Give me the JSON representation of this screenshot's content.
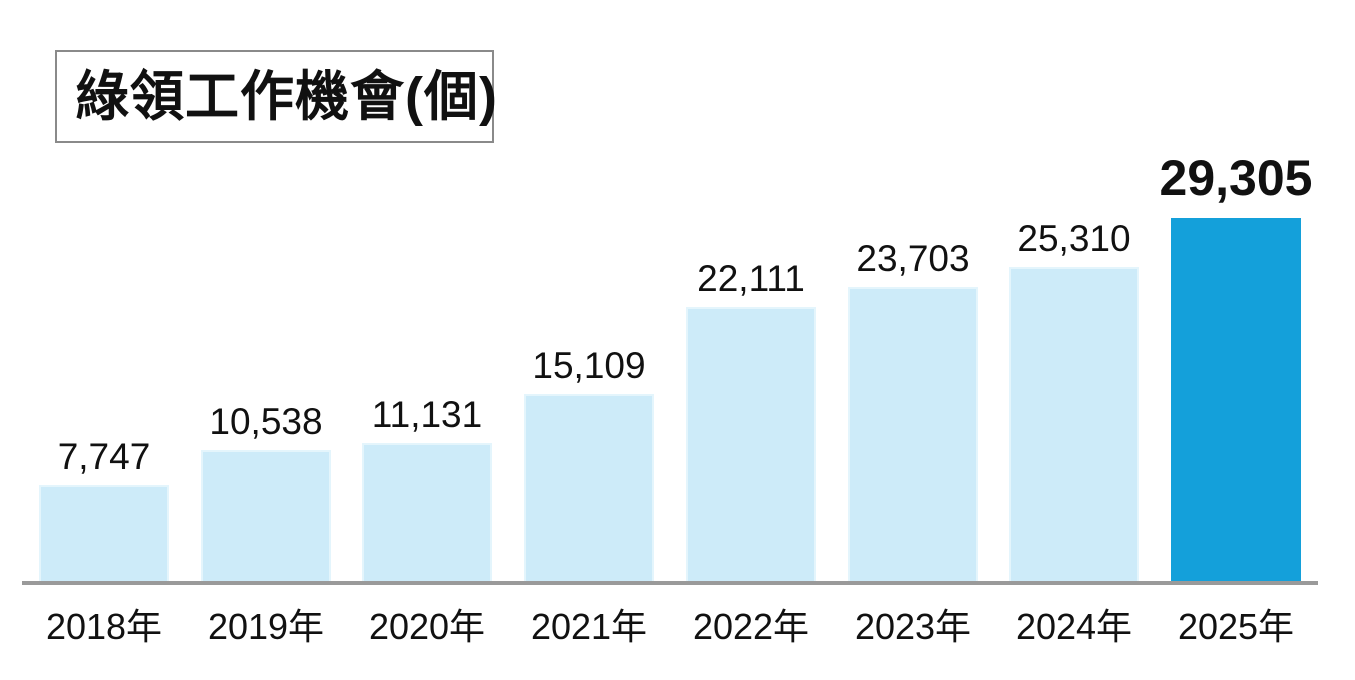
{
  "chart_data": {
    "type": "bar",
    "title": "綠領工作機會(個)",
    "categories": [
      "2018年",
      "2019年",
      "2020年",
      "2021年",
      "2022年",
      "2023年",
      "2024年",
      "2025年"
    ],
    "values": [
      7747,
      10538,
      11131,
      15109,
      22111,
      23703,
      25310,
      29305
    ],
    "value_labels": [
      "7,747",
      "10,538",
      "11,131",
      "15,109",
      "22,111",
      "23,703",
      "25,310",
      "29,305"
    ],
    "highlight_index": 7,
    "highlight_value_label": "29,305",
    "xlabel": "",
    "ylabel": "",
    "ylim": [
      0,
      29305
    ],
    "grid": false,
    "legend": "none",
    "colors": {
      "bar_default": "#cdebf9",
      "bar_default_border": "#e4f5fc",
      "bar_highlight": "#14a0da",
      "axis_line": "#9a9a9a",
      "title_border": "#8a8a8a",
      "text": "#111111",
      "background": "#ffffff"
    }
  }
}
